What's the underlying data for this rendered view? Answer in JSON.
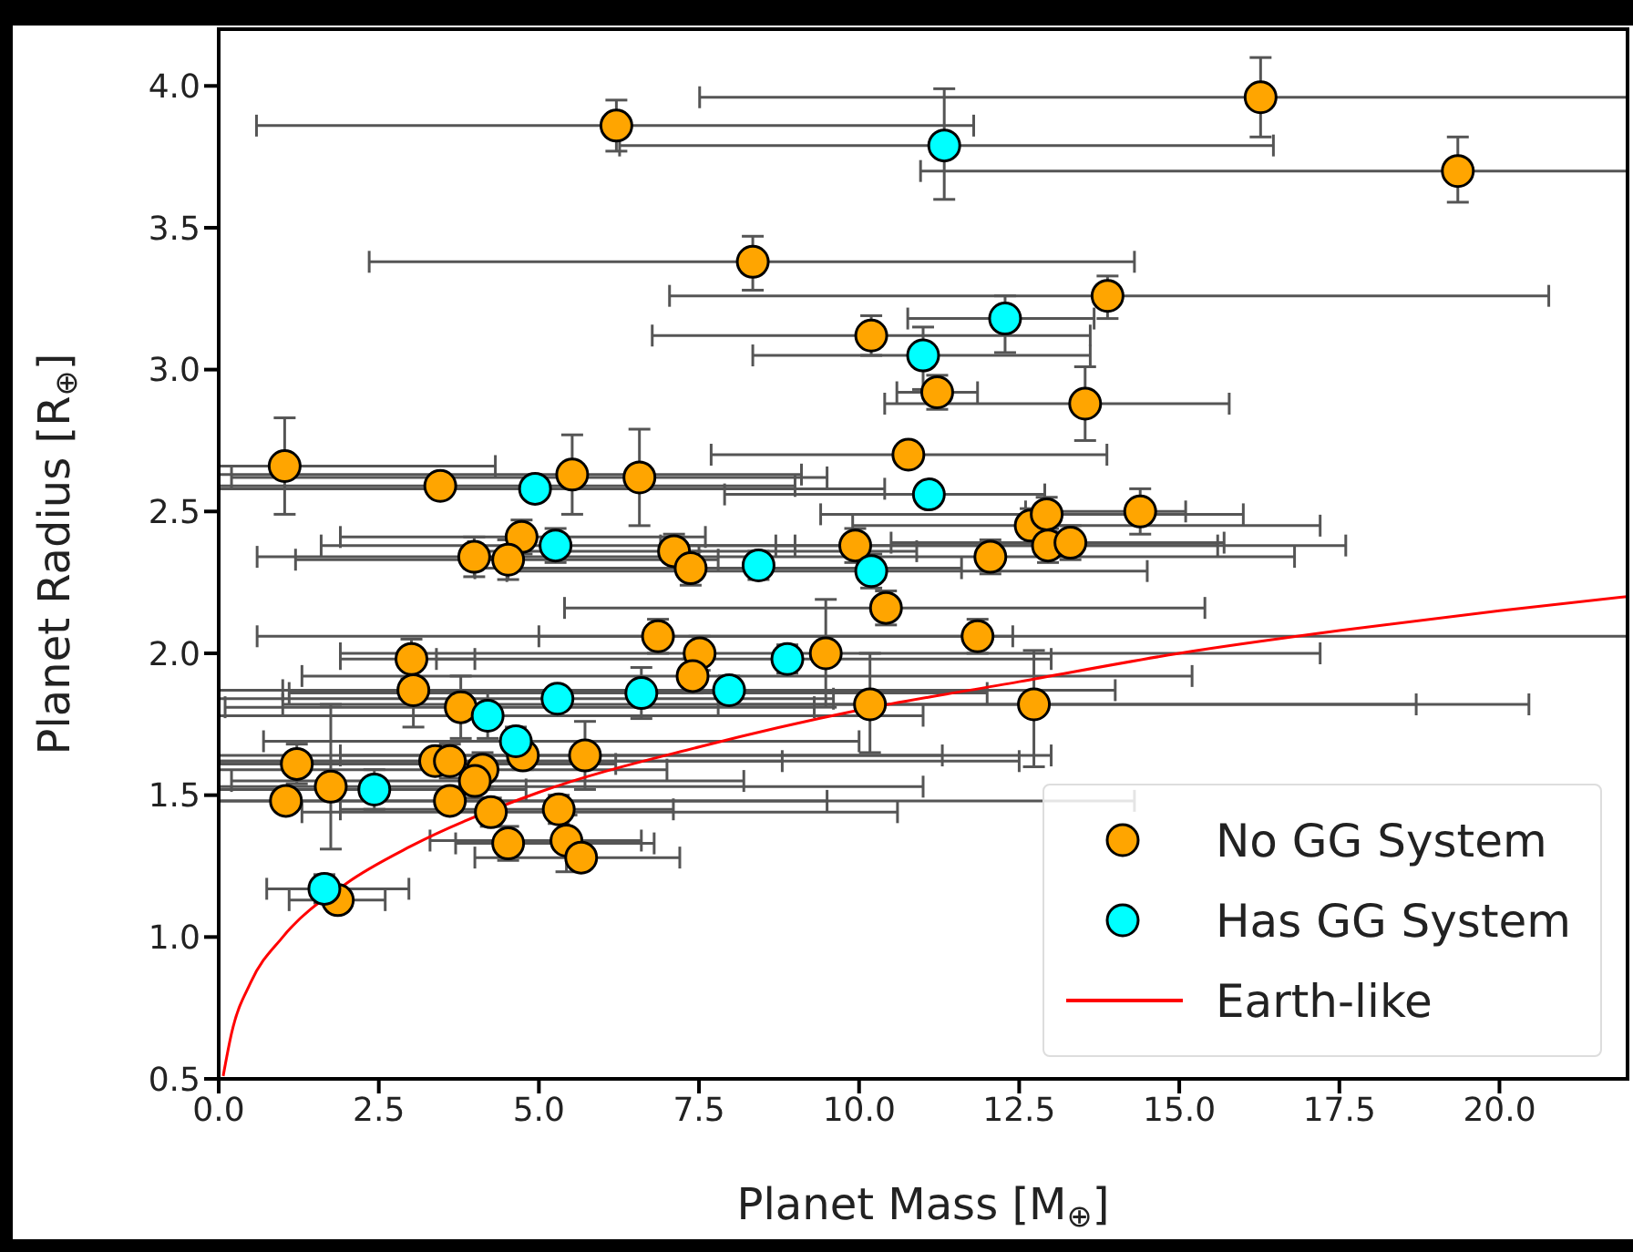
{
  "chart_data": {
    "type": "scatter",
    "xlabel": "Planet Mass [M$_{⊕}$]",
    "ylabel": "Planet Radius [R$_{⊕}$]",
    "xlim": [
      0,
      22
    ],
    "ylim": [
      0.5,
      4.2
    ],
    "xticks": [
      {
        "value": 0,
        "label": "0.0"
      },
      2.5,
      {
        "value": 5,
        "label": "5.0"
      },
      7.5,
      {
        "value": 10,
        "label": "10.0"
      },
      12.5,
      {
        "value": 15,
        "label": "15.0"
      },
      17.5,
      {
        "value": 20,
        "label": "20.0"
      }
    ],
    "yticks": [
      0.5,
      {
        "value": 1,
        "label": "1.0"
      },
      1.5,
      {
        "value": 2,
        "label": "2.0"
      },
      2.5,
      {
        "value": 3,
        "label": "3.0"
      },
      3.5,
      {
        "value": 4,
        "label": "4.0"
      }
    ],
    "legend": "bottom right",
    "marker": "circle",
    "series": [
      {
        "name": "No GG System",
        "color": "#ffa500",
        "x": [
          6.21,
          16.27,
          19.35,
          8.34,
          13.88,
          10.19,
          11.22,
          13.53,
          10.77,
          1.03,
          3.46,
          5.52,
          6.57,
          4.73,
          3.99,
          4.52,
          7.11,
          7.37,
          9.94,
          12.05,
          12.68,
          12.93,
          12.95,
          13.3,
          14.39,
          10.42,
          6.86,
          11.85,
          7.51,
          7.4,
          9.48,
          10.17,
          12.73,
          3.01,
          3.04,
          3.78,
          4.75,
          5.72,
          1.22,
          1.05,
          1.75,
          3.38,
          3.61,
          4.12,
          4.0,
          3.61,
          4.25,
          4.52,
          5.31,
          5.43,
          5.66,
          1.86
        ],
        "values": [
          3.86,
          3.96,
          3.7,
          3.38,
          3.26,
          3.12,
          2.92,
          2.88,
          2.7,
          2.66,
          2.59,
          2.63,
          2.62,
          2.41,
          2.34,
          2.33,
          2.36,
          2.3,
          2.38,
          2.34,
          2.45,
          2.49,
          2.38,
          2.39,
          2.5,
          2.16,
          2.06,
          2.06,
          2.0,
          1.92,
          2.0,
          1.82,
          1.82,
          1.98,
          1.87,
          1.81,
          1.64,
          1.64,
          1.61,
          1.48,
          1.53,
          1.62,
          1.62,
          1.59,
          1.55,
          1.48,
          1.44,
          1.33,
          1.45,
          1.34,
          1.28,
          1.13
        ],
        "errors": [
          [
            3.77,
            3.95
          ],
          [
            3.82,
            4.1
          ],
          [
            3.59,
            3.82
          ],
          [
            3.28,
            3.47
          ],
          [
            3.18,
            3.33
          ],
          [
            3.05,
            3.19
          ],
          [
            2.86,
            2.98
          ],
          [
            2.75,
            3.01
          ],
          [
            2.66,
            2.74
          ],
          [
            2.49,
            2.83
          ],
          [
            2.55,
            2.63
          ],
          [
            2.49,
            2.77
          ],
          [
            2.45,
            2.79
          ],
          [
            2.35,
            2.47
          ],
          [
            2.27,
            2.41
          ],
          [
            2.26,
            2.4
          ],
          [
            2.3,
            2.42
          ],
          [
            2.24,
            2.36
          ],
          [
            2.32,
            2.44
          ],
          [
            2.28,
            2.4
          ],
          [
            2.39,
            2.51
          ],
          [
            2.43,
            2.55
          ],
          [
            2.32,
            2.44
          ],
          [
            2.33,
            2.45
          ],
          [
            2.42,
            2.58
          ],
          [
            2.1,
            2.22
          ],
          [
            2.0,
            2.12
          ],
          [
            2.0,
            2.12
          ],
          [
            1.94,
            2.06
          ],
          [
            1.86,
            1.98
          ],
          [
            1.81,
            2.19
          ],
          [
            1.65,
            2.0
          ],
          [
            1.6,
            2.01
          ],
          [
            1.91,
            2.05
          ],
          [
            1.74,
            1.87
          ],
          [
            1.7,
            1.92
          ],
          [
            1.59,
            1.64
          ],
          [
            1.52,
            1.76
          ],
          [
            1.54,
            1.68
          ],
          null,
          [
            1.31,
            1.82
          ],
          [
            1.58,
            1.66
          ],
          [
            1.56,
            1.68
          ],
          [
            1.53,
            1.65
          ],
          [
            1.49,
            1.61
          ],
          [
            1.44,
            1.52
          ],
          [
            1.39,
            1.49
          ],
          [
            1.27,
            1.39
          ],
          [
            1.4,
            1.5
          ],
          [
            1.23,
            1.43
          ],
          [
            1.24,
            1.32
          ],
          [
            1.09,
            1.17
          ]
        ],
        "xerrors": [
          [
            0.59,
            11.79
          ],
          [
            7.51,
            22
          ],
          [
            10.96,
            22
          ],
          [
            2.35,
            14.3
          ],
          [
            7.04,
            20.77
          ],
          [
            6.77,
            13.61
          ],
          [
            10.59,
            11.85
          ],
          [
            10.4,
            15.78
          ],
          [
            7.69,
            13.87
          ],
          [
            0,
            4.32
          ],
          [
            0,
            9.0
          ],
          [
            0,
            9.1
          ],
          [
            0.2,
            9.5
          ],
          [
            1.9,
            7.6
          ],
          [
            0.6,
            7.5
          ],
          [
            1.2,
            7.8
          ],
          [
            3.9,
            10.9
          ],
          [
            4.0,
            11.6
          ],
          [
            6.9,
            15.6
          ],
          [
            7.2,
            16.8
          ],
          [
            9.9,
            17.2
          ],
          [
            9.4,
            16.0
          ],
          [
            8.7,
            17.6
          ],
          [
            10.5,
            15.7
          ],
          [
            12.6,
            15.1
          ],
          [
            5.4,
            15.4
          ],
          [
            0.6,
            12.4
          ],
          [
            5.0,
            22
          ],
          null,
          [
            1.3,
            15.2
          ],
          [
            1.9,
            17.2
          ],
          [
            1.0,
            18.7
          ],
          [
            7.8,
            20.46
          ],
          [
            1.9,
            4.0
          ],
          [
            0,
            8.1
          ],
          [
            0.1,
            9.3
          ],
          [
            1.9,
            11.3
          ],
          [
            0,
            13.0
          ],
          [
            0,
            6.2
          ],
          [
            0,
            9.5
          ],
          [
            0,
            11.0
          ],
          [
            0,
            8.8
          ],
          [
            0,
            12.5
          ],
          [
            0,
            7.0
          ],
          [
            0.2,
            8.2
          ],
          [
            0,
            14.3
          ],
          [
            1.3,
            10.6
          ],
          [
            3.7,
            6.8
          ],
          [
            1.9,
            7.1
          ],
          [
            3.3,
            6.6
          ],
          [
            4.0,
            7.2
          ],
          [
            1.1,
            2.6
          ]
        ]
      },
      {
        "name": "Has GG System",
        "color": "#00ffff",
        "x": [
          11.33,
          12.28,
          11.0,
          11.09,
          4.94,
          5.26,
          8.43,
          10.19,
          8.88,
          7.97,
          4.2,
          4.64,
          5.29,
          6.6,
          2.43,
          1.65
        ],
        "values": [
          3.79,
          3.18,
          3.05,
          2.56,
          2.58,
          2.38,
          2.31,
          2.29,
          1.98,
          1.87,
          1.78,
          1.69,
          1.84,
          1.86,
          1.52,
          1.17
        ],
        "errors": [
          [
            3.6,
            3.99
          ],
          [
            3.06,
            3.26
          ],
          [
            2.93,
            3.15
          ],
          [
            2.52,
            2.6
          ],
          [
            2.54,
            2.62
          ],
          [
            2.32,
            2.44
          ],
          [
            2.26,
            2.36
          ],
          [
            2.23,
            2.35
          ],
          [
            1.93,
            2.03
          ],
          [
            1.87,
            1.92
          ],
          [
            1.7,
            1.86
          ],
          [
            1.64,
            1.74
          ],
          [
            1.8,
            1.88
          ],
          [
            1.77,
            1.95
          ],
          [
            1.45,
            1.59
          ],
          [
            1.12,
            1.22
          ]
        ],
        "xerrors": [
          [
            6.26,
            16.47
          ],
          [
            10.76,
            13.67
          ],
          [
            8.34,
            13.61
          ],
          [
            7.9,
            12.9
          ],
          [
            0,
            10.4
          ],
          [
            1.6,
            9.0
          ],
          null,
          [
            4.5,
            14.5
          ],
          [
            3.4,
            13.0
          ],
          [
            1.0,
            14.0
          ],
          [
            0,
            11.0
          ],
          [
            0.7,
            10.0
          ],
          [
            0,
            9.6
          ],
          [
            1.1,
            12.0
          ],
          [
            0,
            4.8
          ],
          [
            0.75,
            2.97
          ]
        ]
      },
      {
        "name": "Earth-like",
        "type": "line",
        "marker": "none",
        "color": "#ff0000",
        "x": [
          0.07,
          0.2,
          0.5,
          1,
          2,
          3,
          5,
          7.5,
          10,
          12.5,
          15,
          17.5,
          20,
          22
        ],
        "values": [
          0.51,
          0.66,
          0.84,
          1.0,
          1.19,
          1.32,
          1.51,
          1.67,
          1.8,
          1.9,
          2.0,
          2.08,
          2.15,
          2.2
        ]
      }
    ]
  }
}
